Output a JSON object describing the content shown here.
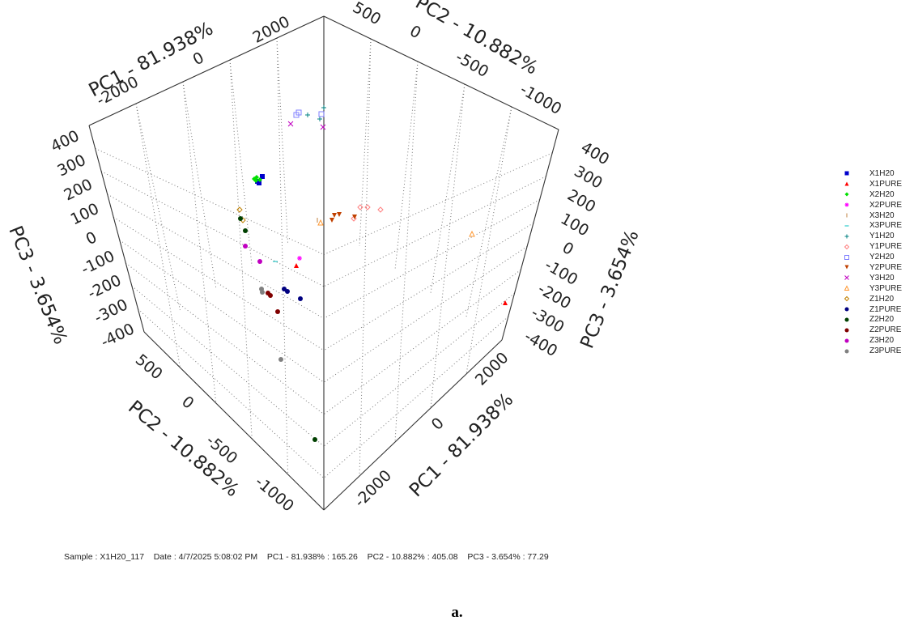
{
  "chart_data": {
    "type": "scatter",
    "projection": "3d",
    "axes": {
      "pc1": {
        "label": "PC1 - 81.938%",
        "ticks": [
          "-2000",
          "0",
          "2000"
        ]
      },
      "pc2": {
        "label": "PC2 - 10.882%",
        "ticks": [
          "500",
          "0",
          "-500",
          "-1000"
        ]
      },
      "pc3": {
        "label": "PC3 - 3.654%",
        "ticks": [
          "400",
          "300",
          "200",
          "100",
          "0",
          "-100",
          "-200",
          "-300",
          "-400"
        ]
      }
    },
    "grid": true,
    "legend_position": "right",
    "series": [
      {
        "name": "X1H20",
        "marker": "square",
        "color": "#0000cc"
      },
      {
        "name": "X1PURE",
        "marker": "triangle",
        "color": "#ff0000"
      },
      {
        "name": "X2H20",
        "marker": "diamond",
        "color": "#00e000"
      },
      {
        "name": "X2PURE",
        "marker": "star",
        "color": "#ff00ff"
      },
      {
        "name": "X3H20",
        "marker": "vline",
        "color": "#c08040"
      },
      {
        "name": "X3PURE",
        "marker": "hline",
        "color": "#00c0c0"
      },
      {
        "name": "Y1H20",
        "marker": "plus",
        "color": "#008080"
      },
      {
        "name": "Y1PURE",
        "marker": "diamond-open",
        "color": "#ff8080"
      },
      {
        "name": "Y2H20",
        "marker": "square-open",
        "color": "#8080ff"
      },
      {
        "name": "Y2PURE",
        "marker": "triangle-down",
        "color": "#c04000"
      },
      {
        "name": "Y3H20",
        "marker": "x",
        "color": "#c000c0"
      },
      {
        "name": "Y3PURE",
        "marker": "triangle-open",
        "color": "#ff9933"
      },
      {
        "name": "Z1H20",
        "marker": "diamond-open",
        "color": "#c08000"
      },
      {
        "name": "Z1PURE",
        "marker": "circle",
        "color": "#000080"
      },
      {
        "name": "Z2H20",
        "marker": "circle",
        "color": "#004000"
      },
      {
        "name": "Z2PURE",
        "marker": "circle",
        "color": "#800000"
      },
      {
        "name": "Z3H20",
        "marker": "circle",
        "color": "#c000c0"
      },
      {
        "name": "Z3PURE",
        "marker": "circle",
        "color": "#808080"
      }
    ]
  },
  "status": {
    "sample": "Sample : X1H20_117",
    "date": "Date : 4/7/2025 5:08:02 PM",
    "pc1": "PC1 - 81.938% : 165.26",
    "pc2": "PC2 - 10.882% : 405.08",
    "pc3": "PC3 - 3.654% : 77.29"
  },
  "caption": "a."
}
